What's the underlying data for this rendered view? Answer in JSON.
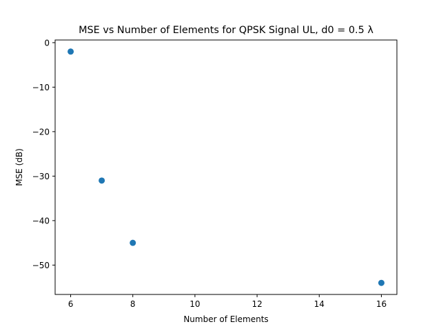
{
  "chart_data": {
    "type": "scatter",
    "title": "MSE vs Number of Elements for QPSK Signal UL, d0 = 0.5 λ",
    "xlabel": "Number of Elements",
    "ylabel": "MSE (dB)",
    "xlim": [
      5.5,
      16.5
    ],
    "ylim": [
      -56.6,
      0.6
    ],
    "xticks": [
      6,
      8,
      10,
      12,
      14,
      16
    ],
    "yticks": [
      0,
      -10,
      -20,
      -30,
      -40,
      -50
    ],
    "series": [
      {
        "color": "#1f77b4",
        "marker": "circle",
        "points": [
          {
            "x": 6,
            "y": -2
          },
          {
            "x": 7,
            "y": -31
          },
          {
            "x": 8,
            "y": -45
          },
          {
            "x": 16,
            "y": -54
          }
        ]
      }
    ],
    "grid": false,
    "legend": "none"
  }
}
